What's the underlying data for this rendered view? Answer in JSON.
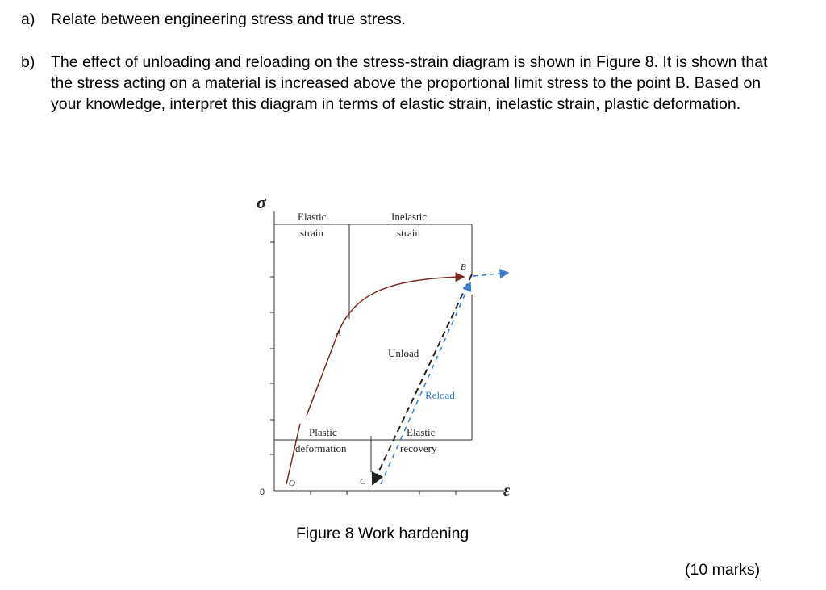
{
  "questions": [
    {
      "label": "a)",
      "text": "Relate between engineering stress and true stress."
    },
    {
      "label": "b)",
      "text": "The effect of unloading and reloading on the stress-strain diagram is shown in Figure 8. It is shown that the stress acting on a material is increased above the proportional limit stress to the point B. Based on your knowledge, interpret this diagram in terms of elastic strain, inelastic strain, plastic deformation."
    }
  ],
  "figure": {
    "y_axis": "σ",
    "x_axis": "ε",
    "origin": "0",
    "points": {
      "o": "O",
      "a": "A",
      "b": "B",
      "c": "C"
    },
    "elastic_strain": [
      "Elastic",
      "strain"
    ],
    "inelastic_strain": [
      "Inelastic",
      "strain"
    ],
    "unload": "Unload",
    "reload": "Reload",
    "plastic_deformation": [
      "Plastic",
      "deformation"
    ],
    "elastic_recovery": [
      "Elastic",
      "recovery"
    ],
    "caption": "Figure 8 Work hardening"
  },
  "marks": "(10 marks)"
}
